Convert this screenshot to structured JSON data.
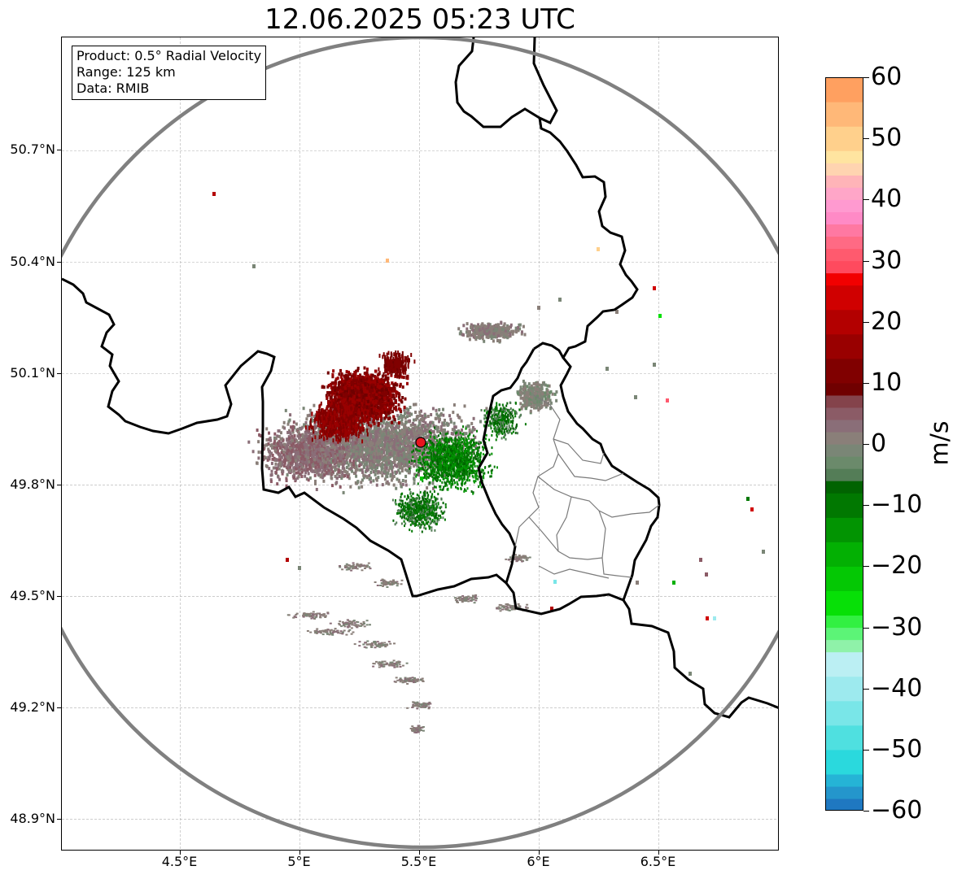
{
  "title": "12.06.2025 05:23 UTC",
  "info": {
    "product": "Product: 0.5° Radial Velocity",
    "range": "Range: 125 km",
    "source": "Data: RMIB"
  },
  "axes": {
    "lat_labels": [
      {
        "value": 50.7,
        "text": "50.7°N"
      },
      {
        "value": 50.4,
        "text": "50.4°N"
      },
      {
        "value": 50.1,
        "text": "50.1°N"
      },
      {
        "value": 49.8,
        "text": "49.8°N"
      },
      {
        "value": 49.5,
        "text": "49.5°N"
      },
      {
        "value": 49.2,
        "text": "49.2°N"
      },
      {
        "value": 48.9,
        "text": "48.9°N"
      }
    ],
    "lon_labels": [
      {
        "value": 4.5,
        "text": "4.5°E"
      },
      {
        "value": 5.0,
        "text": "5°E"
      },
      {
        "value": 5.5,
        "text": "5.5°E"
      },
      {
        "value": 6.0,
        "text": "6°E"
      },
      {
        "value": 6.5,
        "text": "6.5°E"
      }
    ],
    "lon_range": [
      4.0,
      7.0
    ],
    "lat_range": [
      48.8,
      51.0
    ]
  },
  "radar_site": {
    "lon": 5.505,
    "lat": 49.915,
    "color": "#e8141e"
  },
  "colorbar": {
    "unit": "m/s",
    "vmin": -60,
    "vmax": 60,
    "ticks": [
      {
        "value": 60,
        "text": "60"
      },
      {
        "value": 50,
        "text": "50"
      },
      {
        "value": 40,
        "text": "40"
      },
      {
        "value": 30,
        "text": "30"
      },
      {
        "value": 20,
        "text": "20"
      },
      {
        "value": 10,
        "text": "10"
      },
      {
        "value": 0,
        "text": "0"
      },
      {
        "value": -10,
        "text": "−10"
      },
      {
        "value": -20,
        "text": "−20"
      },
      {
        "value": -30,
        "text": "−30"
      },
      {
        "value": -40,
        "text": "−40"
      },
      {
        "value": -50,
        "text": "−50"
      },
      {
        "value": -60,
        "text": "−60"
      }
    ],
    "stops": [
      {
        "from": -60,
        "to": -58,
        "color": "#1f78c1"
      },
      {
        "from": -58,
        "to": -56,
        "color": "#2496cc"
      },
      {
        "from": -56,
        "to": -54,
        "color": "#25b4d6"
      },
      {
        "from": -54,
        "to": -50,
        "color": "#2ad9dd"
      },
      {
        "from": -50,
        "to": -46,
        "color": "#4fe0e0"
      },
      {
        "from": -46,
        "to": -42,
        "color": "#79e6e8"
      },
      {
        "from": -42,
        "to": -38,
        "color": "#9deaee"
      },
      {
        "from": -38,
        "to": -34,
        "color": "#bbeff3"
      },
      {
        "from": -34,
        "to": -32,
        "color": "#8ff2a9"
      },
      {
        "from": -32,
        "to": -30,
        "color": "#5cf477"
      },
      {
        "from": -30,
        "to": -28,
        "color": "#32f042"
      },
      {
        "from": -28,
        "to": -24,
        "color": "#07e007"
      },
      {
        "from": -24,
        "to": -20,
        "color": "#04c804"
      },
      {
        "from": -20,
        "to": -16,
        "color": "#03b003"
      },
      {
        "from": -16,
        "to": -12,
        "color": "#029402"
      },
      {
        "from": -12,
        "to": -8,
        "color": "#017801"
      },
      {
        "from": -8,
        "to": -6,
        "color": "#016301"
      },
      {
        "from": -6,
        "to": -4,
        "color": "#547d57"
      },
      {
        "from": -4,
        "to": -2,
        "color": "#6b8a6b"
      },
      {
        "from": -2,
        "to": 0,
        "color": "#7a8676"
      },
      {
        "from": 0,
        "to": 2,
        "color": "#8a7f79"
      },
      {
        "from": 2,
        "to": 4,
        "color": "#8a6e78"
      },
      {
        "from": 4,
        "to": 6,
        "color": "#8b5b66"
      },
      {
        "from": 6,
        "to": 8,
        "color": "#84434b"
      },
      {
        "from": 8,
        "to": 10,
        "color": "#700000"
      },
      {
        "from": 10,
        "to": 14,
        "color": "#800000"
      },
      {
        "from": 14,
        "to": 18,
        "color": "#990000"
      },
      {
        "from": 18,
        "to": 22,
        "color": "#b30000"
      },
      {
        "from": 22,
        "to": 26,
        "color": "#d00000"
      },
      {
        "from": 26,
        "to": 28,
        "color": "#f20000"
      },
      {
        "from": 28,
        "to": 30,
        "color": "#ff4a5e"
      },
      {
        "from": 30,
        "to": 32,
        "color": "#ff5a6e"
      },
      {
        "from": 32,
        "to": 34,
        "color": "#ff6a84"
      },
      {
        "from": 34,
        "to": 36,
        "color": "#ff78a2"
      },
      {
        "from": 36,
        "to": 38,
        "color": "#ff8ac6"
      },
      {
        "from": 38,
        "to": 40,
        "color": "#ff9ad0"
      },
      {
        "from": 40,
        "to": 42,
        "color": "#ffa6c8"
      },
      {
        "from": 42,
        "to": 44,
        "color": "#ffb4b8"
      },
      {
        "from": 44,
        "to": 46,
        "color": "#ffd4b0"
      },
      {
        "from": 46,
        "to": 48,
        "color": "#ffe4a0"
      },
      {
        "from": 48,
        "to": 52,
        "color": "#ffd08c"
      },
      {
        "from": 52,
        "to": 56,
        "color": "#ffb878"
      },
      {
        "from": 56,
        "to": 60,
        "color": "#ffa060"
      }
    ]
  },
  "colors": {
    "range_ring": "#808080",
    "country_border": "#000000",
    "region_border": "#7a7a7a",
    "gridline": "#b0b0b0"
  }
}
